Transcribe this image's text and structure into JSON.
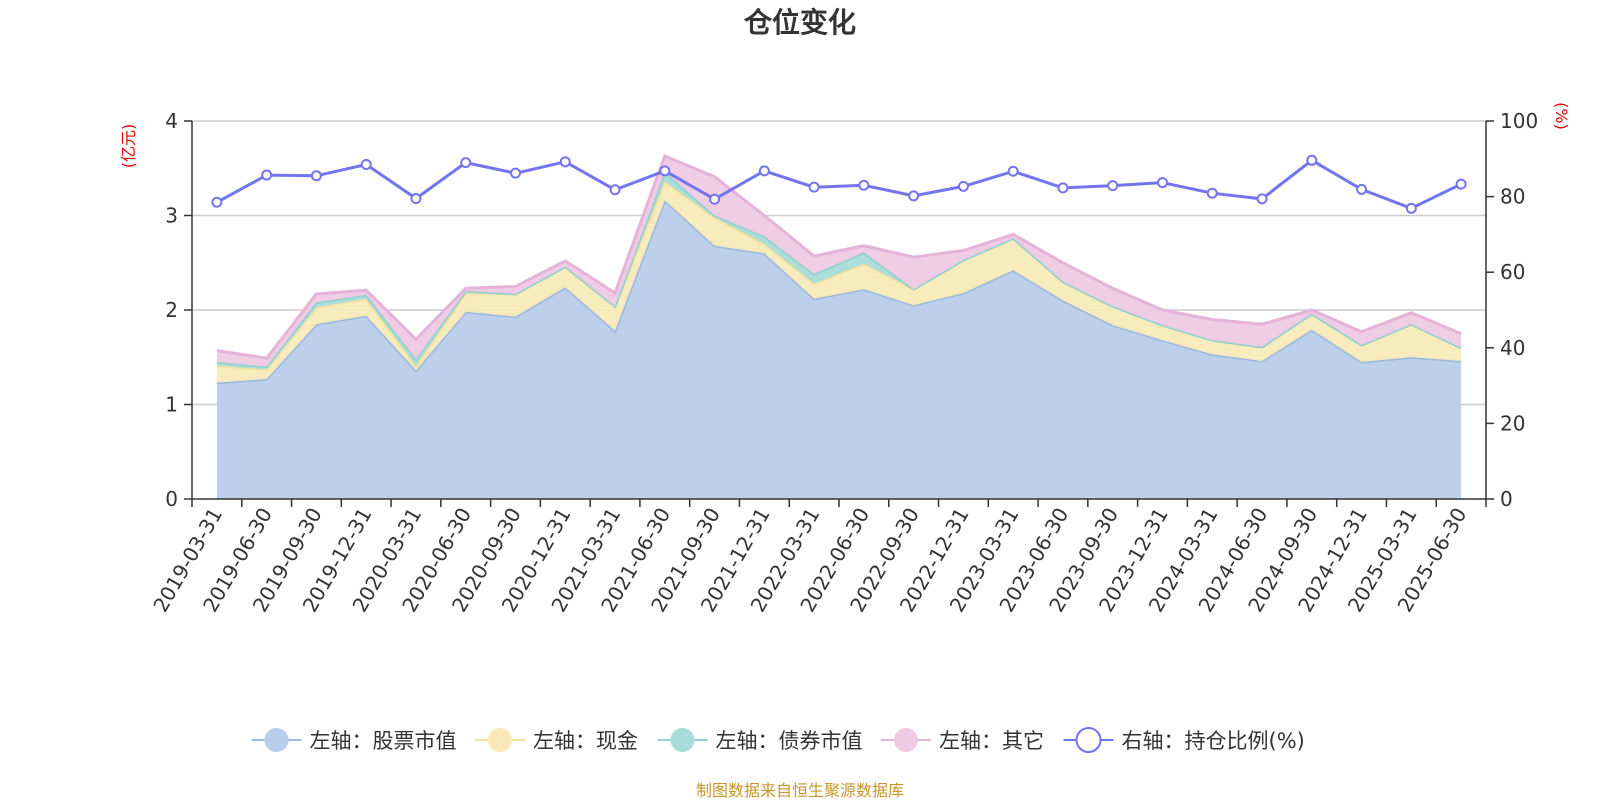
{
  "chart_data": {
    "type": "area",
    "title": "仓位变化",
    "left_unit": "(亿元)",
    "right_unit": "(%)",
    "ylim_left": [
      0,
      4
    ],
    "yticks_left": [
      0,
      1,
      2,
      3,
      4
    ],
    "ylim_right": [
      0,
      100
    ],
    "yticks_right": [
      0,
      20,
      40,
      60,
      80,
      100
    ],
    "grid": true,
    "legend_position": "bottom",
    "source": "制图数据来自恒生聚源数据库",
    "x": [
      "2019-03-31",
      "2019-06-30",
      "2019-09-30",
      "2019-12-31",
      "2020-03-31",
      "2020-06-30",
      "2020-09-30",
      "2020-12-31",
      "2021-03-31",
      "2021-06-30",
      "2021-09-30",
      "2021-12-31",
      "2022-03-31",
      "2022-06-30",
      "2022-09-30",
      "2022-12-31",
      "2023-03-31",
      "2023-06-30",
      "2023-09-30",
      "2023-12-31",
      "2024-03-31",
      "2024-06-30",
      "2024-09-30",
      "2024-12-31",
      "2025-03-31",
      "2025-06-30"
    ],
    "series": [
      {
        "name": "左轴：股票市值",
        "axis": "left",
        "kind": "stacked-area",
        "color": "#9bb8e0",
        "fill": "#b8cdea",
        "values": [
          1.23,
          1.27,
          1.85,
          1.94,
          1.36,
          1.98,
          1.93,
          2.24,
          1.78,
          3.16,
          2.68,
          2.6,
          2.12,
          2.22,
          2.05,
          2.18,
          2.42,
          2.1,
          1.84,
          1.68,
          1.53,
          1.46,
          1.79,
          1.45,
          1.5,
          1.46
        ]
      },
      {
        "name": "左轴：现金",
        "axis": "left",
        "kind": "stacked-area",
        "color": "#f5e29a",
        "fill": "#f8eab8",
        "values": [
          0.18,
          0.1,
          0.18,
          0.18,
          0.05,
          0.2,
          0.24,
          0.22,
          0.26,
          0.2,
          0.3,
          0.1,
          0.16,
          0.27,
          0.17,
          0.35,
          0.34,
          0.2,
          0.2,
          0.16,
          0.15,
          0.15,
          0.17,
          0.18,
          0.35,
          0.14
        ]
      },
      {
        "name": "左轴：债券市值",
        "axis": "left",
        "kind": "stacked-area",
        "color": "#8fd0d0",
        "fill": "#a8dcd8",
        "values": [
          0.04,
          0.03,
          0.05,
          0.04,
          0.07,
          0.02,
          0.0,
          0.0,
          0.0,
          0.1,
          0.02,
          0.08,
          0.1,
          0.12,
          0.0,
          0.0,
          0.0,
          0.0,
          0.0,
          0.0,
          0.0,
          0.0,
          0.0,
          0.0,
          0.0,
          0.0
        ]
      },
      {
        "name": "左轴：其它",
        "axis": "left",
        "kind": "stacked-area",
        "color": "#e6b3d8",
        "fill": "#eecae3",
        "values": [
          0.12,
          0.09,
          0.09,
          0.05,
          0.21,
          0.03,
          0.08,
          0.06,
          0.14,
          0.17,
          0.41,
          0.22,
          0.19,
          0.07,
          0.34,
          0.1,
          0.04,
          0.2,
          0.19,
          0.16,
          0.22,
          0.24,
          0.04,
          0.14,
          0.12,
          0.15
        ]
      },
      {
        "name": "右轴：持仓比例(%)",
        "axis": "right",
        "kind": "line",
        "color": "#7474ef",
        "values": [
          78.5,
          85.7,
          85.5,
          88.5,
          79.5,
          89.0,
          86.2,
          89.2,
          81.8,
          86.8,
          79.3,
          86.8,
          82.5,
          83.0,
          80.2,
          82.7,
          86.7,
          82.3,
          82.9,
          83.7,
          80.9,
          79.4,
          89.6,
          81.9,
          76.9,
          83.3
        ]
      }
    ]
  }
}
